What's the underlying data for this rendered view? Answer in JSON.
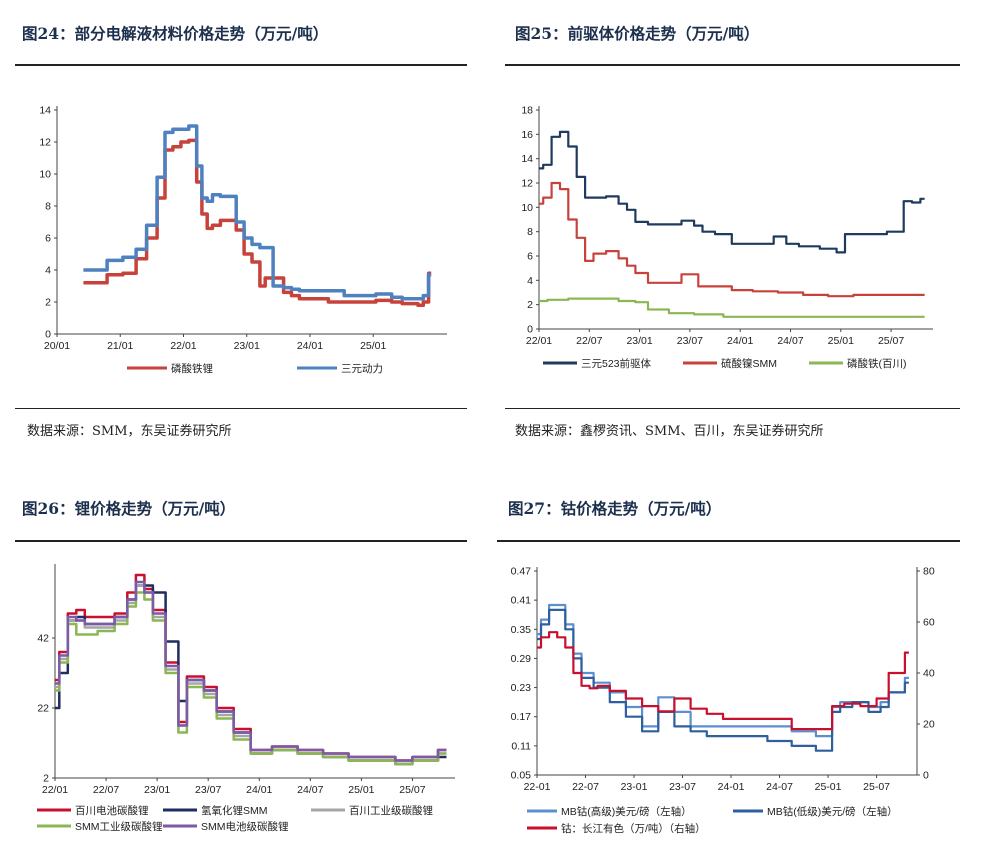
{
  "charts": {
    "c24": {
      "title": "图24：部分电解液材料价格走势（万元/吨）",
      "source": "数据来源：SMM，东吴证券研究所",
      "chart_data": {
        "type": "line",
        "x_ticks": [
          "20/01",
          "21/01",
          "22/01",
          "23/01",
          "24/01",
          "25/01"
        ],
        "ylim": [
          0,
          14
        ],
        "y_ticks": [
          "0",
          "2",
          "4",
          "6",
          "8",
          "10",
          "12",
          "14"
        ],
        "legend": "bottom",
        "series": [
          {
            "name": "磷酸铁锂",
            "color": "#c8423c",
            "x": [
              "20/06",
              "20/09",
              "20/12",
              "21/03",
              "21/05",
              "21/07",
              "21/09",
              "21/10",
              "21/12",
              "22/01",
              "22/03",
              "22/04",
              "22/05",
              "22/06",
              "22/07",
              "22/09",
              "22/10",
              "22/12",
              "23/01",
              "23/03",
              "23/04",
              "23/05",
              "23/07",
              "23/09",
              "23/10",
              "23/12",
              "24/03",
              "24/06",
              "24/09",
              "24/12",
              "25/03",
              "25/06",
              "25/07",
              "25/09",
              "25/10",
              "25/11",
              "25/12"
            ],
            "values": [
              3.2,
              3.2,
              3.7,
              3.8,
              4.7,
              6.0,
              8.5,
              11.5,
              11.7,
              12.0,
              12.1,
              9.5,
              7.5,
              6.6,
              6.8,
              7.1,
              7.1,
              6.5,
              5.0,
              4.5,
              3.0,
              3.5,
              3.5,
              2.6,
              2.4,
              2.2,
              2.2,
              2.0,
              2.0,
              2.0,
              2.1,
              2.0,
              1.9,
              1.9,
              1.8,
              2.0,
              3.8
            ]
          },
          {
            "name": "三元动力",
            "color": "#4e81c0",
            "x": [
              "20/06",
              "20/09",
              "20/12",
              "21/03",
              "21/05",
              "21/07",
              "21/09",
              "21/10",
              "21/12",
              "22/01",
              "22/03",
              "22/04",
              "22/05",
              "22/06",
              "22/07",
              "22/09",
              "22/10",
              "22/12",
              "23/01",
              "23/03",
              "23/04",
              "23/05",
              "23/07",
              "23/09",
              "23/10",
              "23/12",
              "24/03",
              "24/06",
              "24/09",
              "24/12",
              "25/03",
              "25/06",
              "25/07",
              "25/09",
              "25/10",
              "25/11",
              "25/12"
            ],
            "values": [
              4.0,
              4.0,
              4.6,
              4.8,
              5.3,
              6.8,
              9.8,
              12.6,
              12.8,
              12.8,
              13.0,
              10.5,
              8.5,
              8.3,
              8.7,
              8.6,
              8.6,
              7.0,
              6.0,
              5.6,
              5.4,
              5.4,
              3.0,
              2.9,
              2.8,
              2.7,
              2.7,
              2.7,
              2.4,
              2.4,
              2.5,
              2.3,
              2.2,
              2.2,
              2.2,
              2.4,
              3.7
            ]
          }
        ]
      }
    },
    "c25": {
      "title": "图25：前驱体价格走势（万元/吨）",
      "source": "数据来源：鑫椤资讯、SMM、百川，东吴证券研究所",
      "chart_data": {
        "type": "line",
        "x_ticks": [
          "22/01",
          "22/07",
          "23/01",
          "23/07",
          "24/01",
          "24/07",
          "25/01",
          "25/07"
        ],
        "ylim": [
          0,
          18
        ],
        "y_ticks": [
          "0",
          "2",
          "4",
          "6",
          "8",
          "10",
          "12",
          "14",
          "16",
          "18"
        ],
        "legend": "bottom",
        "series": [
          {
            "name": "三元523前驱体",
            "color": "#1f3a5f",
            "x": [
              "22/01",
              "22/02",
              "22/03",
              "22/04",
              "22/05",
              "22/06",
              "22/07",
              "22/08",
              "22/10",
              "22/11",
              "22/12",
              "23/01",
              "23/03",
              "23/05",
              "23/07",
              "23/08",
              "23/09",
              "23/11",
              "24/01",
              "24/04",
              "24/06",
              "24/07",
              "24/09",
              "24/12",
              "25/01",
              "25/02",
              "25/05",
              "25/08",
              "25/09",
              "25/10",
              "25/11"
            ],
            "values": [
              13.2,
              13.5,
              15.8,
              16.2,
              15.0,
              12.5,
              10.8,
              10.8,
              10.9,
              10.3,
              9.8,
              8.8,
              8.6,
              8.6,
              8.9,
              8.5,
              8.0,
              7.8,
              7.0,
              7.0,
              7.6,
              7.0,
              6.8,
              6.6,
              6.3,
              7.8,
              7.8,
              8.0,
              10.5,
              10.4,
              10.7
            ]
          },
          {
            "name": "硫酸镍SMM",
            "color": "#c8423c",
            "x": [
              "22/01",
              "22/02",
              "22/03",
              "22/04",
              "22/05",
              "22/06",
              "22/07",
              "22/08",
              "22/10",
              "22/11",
              "22/12",
              "23/01",
              "23/03",
              "23/05",
              "23/07",
              "23/09",
              "23/11",
              "24/01",
              "24/04",
              "24/07",
              "24/10",
              "25/01",
              "25/04",
              "25/07",
              "25/10",
              "25/11"
            ],
            "values": [
              10.3,
              10.8,
              12.0,
              11.5,
              9.0,
              7.5,
              5.6,
              6.2,
              6.4,
              5.8,
              5.2,
              4.6,
              3.8,
              3.8,
              4.5,
              3.5,
              3.5,
              3.2,
              3.1,
              3.0,
              2.8,
              2.7,
              2.8,
              2.8,
              2.8,
              2.8
            ]
          },
          {
            "name": "磷酸铁(百川)",
            "color": "#8cb654",
            "x": [
              "22/01",
              "22/03",
              "22/06",
              "22/09",
              "22/12",
              "23/01",
              "23/03",
              "23/06",
              "23/09",
              "24/01",
              "24/06",
              "25/01",
              "25/06",
              "25/11"
            ],
            "values": [
              2.3,
              2.4,
              2.5,
              2.5,
              2.3,
              2.2,
              1.6,
              1.3,
              1.2,
              1.0,
              1.0,
              1.0,
              1.0,
              1.0
            ]
          }
        ]
      }
    },
    "c26": {
      "title": "图26：锂价格走势（万元/吨）",
      "chart_data": {
        "type": "line",
        "x_ticks": [
          "22/01",
          "22/07",
          "23/01",
          "23/07",
          "24/01",
          "24/07",
          "25/01",
          "25/07"
        ],
        "ylim": [
          2,
          62
        ],
        "y_ticks": [
          "2",
          "22",
          "42"
        ],
        "legend": "bottom",
        "series": [
          {
            "name": "百川电池碳酸锂",
            "color": "#c8102e",
            "x": [
              "22/01",
              "22/02",
              "22/03",
              "22/04",
              "22/05",
              "22/07",
              "22/09",
              "22/10",
              "22/11",
              "22/12",
              "23/01",
              "23/03",
              "23/04",
              "23/05",
              "23/06",
              "23/07",
              "23/09",
              "23/11",
              "24/01",
              "24/04",
              "24/07",
              "24/10",
              "25/01",
              "25/04",
              "25/06",
              "25/08",
              "25/09",
              "25/11"
            ],
            "values": [
              30,
              38,
              49,
              50,
              48,
              48,
              49,
              55,
              60,
              56,
              50,
              35,
              18,
              31,
              31,
              28,
              22,
              16,
              10,
              11,
              10,
              9,
              8,
              8,
              7,
              8,
              8,
              10
            ]
          },
          {
            "name": "氢氧化锂SMM",
            "color": "#1f2d5f",
            "x": [
              "22/01",
              "22/02",
              "22/03",
              "22/04",
              "22/05",
              "22/07",
              "22/09",
              "22/10",
              "22/11",
              "22/12",
              "23/01",
              "23/03",
              "23/04",
              "23/05",
              "23/06",
              "23/07",
              "23/09",
              "23/11",
              "24/01",
              "24/04",
              "24/07",
              "24/10",
              "25/01",
              "25/04",
              "25/06",
              "25/08",
              "25/09",
              "25/11"
            ],
            "values": [
              22,
              32,
              47,
              48,
              46,
              46,
              48,
              53,
              57,
              57,
              55,
              41,
              24,
              30,
              30,
              27,
              21,
              15,
              9,
              10,
              9,
              8,
              7,
              7,
              6,
              7,
              7,
              8
            ]
          },
          {
            "name": "百川工业级碳酸锂",
            "color": "#a6a6a6",
            "x": [
              "22/01",
              "22/02",
              "22/03",
              "22/04",
              "22/05",
              "22/07",
              "22/09",
              "22/10",
              "22/11",
              "22/12",
              "23/01",
              "23/03",
              "23/04",
              "23/05",
              "23/06",
              "23/07",
              "23/09",
              "23/11",
              "24/01",
              "24/04",
              "24/07",
              "24/10",
              "25/01",
              "25/04",
              "25/06",
              "25/08",
              "25/09",
              "25/11"
            ],
            "values": [
              28,
              36,
              47,
              47,
              45,
              45,
              47,
              52,
              57,
              55,
              48,
              33,
              17,
              29,
              29,
              26,
              20,
              14,
              9,
              10,
              9,
              8,
              7,
              7,
              6,
              7,
              7,
              9
            ]
          },
          {
            "name": "SMM工业级碳酸锂",
            "color": "#8cb654",
            "x": [
              "22/01",
              "22/02",
              "22/03",
              "22/04",
              "22/05",
              "22/07",
              "22/09",
              "22/10",
              "22/11",
              "22/12",
              "23/01",
              "23/03",
              "23/04",
              "23/05",
              "23/06",
              "23/07",
              "23/09",
              "23/11",
              "24/01",
              "24/04",
              "24/07",
              "24/10",
              "25/01",
              "25/04",
              "25/06",
              "25/08",
              "25/09",
              "25/11"
            ],
            "values": [
              27,
              35,
              46,
              43,
              43,
              44,
              46,
              51,
              55,
              53,
              47,
              32,
              15,
              28,
              28,
              25,
              19,
              13,
              9,
              10,
              9,
              8,
              7,
              7,
              6,
              7,
              7,
              9
            ]
          },
          {
            "name": "SMM电池级碳酸锂",
            "color": "#7b5aa6",
            "x": [
              "22/01",
              "22/02",
              "22/03",
              "22/04",
              "22/05",
              "22/07",
              "22/09",
              "22/10",
              "22/11",
              "22/12",
              "23/01",
              "23/03",
              "23/04",
              "23/05",
              "23/06",
              "23/07",
              "23/09",
              "23/11",
              "24/01",
              "24/04",
              "24/07",
              "24/10",
              "25/01",
              "25/04",
              "25/06",
              "25/08",
              "25/09",
              "25/11"
            ],
            "values": [
              29,
              37,
              48,
              47,
              46,
              46,
              48,
              53,
              58,
              55,
              49,
              34,
              17,
              30,
              30,
              27,
              21,
              15,
              10,
              11,
              10,
              9,
              8,
              8,
              7,
              8,
              8,
              10
            ]
          }
        ]
      }
    },
    "c27": {
      "title": "图27：钴价格走势（万元/吨）",
      "chart_data": {
        "type": "line",
        "x_ticks": [
          "22-01",
          "22-07",
          "23-01",
          "23-07",
          "24-01",
          "24-07",
          "25-01",
          "25-07"
        ],
        "ylim": [
          0.05,
          0.47
        ],
        "y_ticks": [
          "0.05",
          "0.11",
          "0.17",
          "0.23",
          "0.29",
          "0.35",
          "0.41",
          "0.47"
        ],
        "y2lim": [
          0,
          80
        ],
        "y2_ticks": [
          "0",
          "20",
          "40",
          "60",
          "80"
        ],
        "legend": "bottom",
        "series": [
          {
            "name": "MB钴(高级)美元/磅（左轴）",
            "color": "#5b8fd1",
            "axis": "left",
            "x": [
              "22/01",
              "22/02",
              "22/03",
              "22/04",
              "22/05",
              "22/06",
              "22/07",
              "22/09",
              "22/11",
              "23/01",
              "23/03",
              "23/05",
              "23/07",
              "23/09",
              "23/11",
              "24/01",
              "24/04",
              "24/07",
              "24/10",
              "25/01",
              "25/02",
              "25/03",
              "25/05",
              "25/07",
              "25/08",
              "25/09",
              "25/10",
              "25/11"
            ],
            "values": [
              0.34,
              0.37,
              0.4,
              0.4,
              0.36,
              0.3,
              0.26,
              0.24,
              0.22,
              0.19,
              0.15,
              0.21,
              0.18,
              0.15,
              0.15,
              0.15,
              0.15,
              0.15,
              0.14,
              0.13,
              0.19,
              0.2,
              0.2,
              0.19,
              0.2,
              0.22,
              0.22,
              0.25
            ]
          },
          {
            "name": "MB钴(低级)美元/磅（左轴）",
            "color": "#2e5f9e",
            "axis": "left",
            "x": [
              "22/01",
              "22/02",
              "22/03",
              "22/04",
              "22/05",
              "22/06",
              "22/07",
              "22/09",
              "22/11",
              "23/01",
              "23/03",
              "23/05",
              "23/07",
              "23/09",
              "23/11",
              "24/01",
              "24/04",
              "24/07",
              "24/10",
              "25/01",
              "25/02",
              "25/03",
              "25/05",
              "25/07",
              "25/08",
              "25/09",
              "25/10",
              "25/11"
            ],
            "values": [
              0.33,
              0.36,
              0.39,
              0.39,
              0.35,
              0.29,
              0.25,
              0.23,
              0.2,
              0.17,
              0.14,
              0.18,
              0.15,
              0.14,
              0.13,
              0.13,
              0.13,
              0.12,
              0.11,
              0.1,
              0.18,
              0.19,
              0.2,
              0.18,
              0.19,
              0.22,
              0.22,
              0.24
            ]
          },
          {
            "name": "钴：长江有色（万/吨）（右轴）",
            "color": "#c8102e",
            "axis": "right",
            "x": [
              "22/01",
              "22/02",
              "22/03",
              "22/04",
              "22/05",
              "22/06",
              "22/07",
              "22/08",
              "22/09",
              "22/11",
              "23/01",
              "23/03",
              "23/05",
              "23/07",
              "23/09",
              "23/11",
              "24/01",
              "24/04",
              "24/07",
              "24/10",
              "25/01",
              "25/02",
              "25/04",
              "25/06",
              "25/08",
              "25/09",
              "25/10",
              "25/11"
            ],
            "values": [
              50,
              54,
              56,
              54,
              50,
              40,
              35,
              34,
              35,
              33,
              30,
              27,
              25,
              30,
              26,
              24,
              22,
              22,
              22,
              18,
              18,
              27,
              28,
              27,
              30,
              40,
              40,
              48
            ]
          }
        ]
      }
    }
  }
}
